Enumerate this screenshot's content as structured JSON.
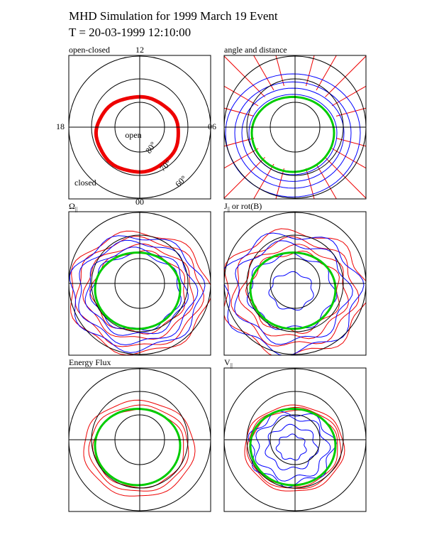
{
  "header": {
    "title": "MHD Simulation for 1999 March 19 Event",
    "time": "T = 20-03-1999  12:10:00"
  },
  "panels": [
    {
      "label": [
        "open-closed"
      ]
    },
    {
      "label": [
        "angle and distance"
      ]
    },
    {
      "label": [
        "Ω",
        "||"
      ]
    },
    {
      "label": [
        "J",
        "||",
        " or rot(B)"
      ]
    },
    {
      "label": [
        "Energy Flux"
      ]
    },
    {
      "label": [
        "V",
        "||"
      ]
    }
  ],
  "axis_labels": {
    "top": "12",
    "left": "18",
    "right": "06",
    "bottom": "00"
  },
  "annotations": {
    "open": "open",
    "closed": "closed",
    "lat80": "80°",
    "lat70": "70°",
    "lat60": "60°"
  }
}
